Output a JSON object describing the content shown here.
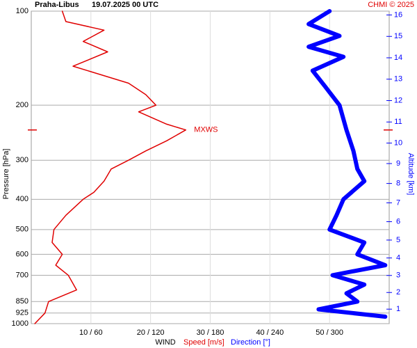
{
  "chart_data": {
    "type": "profile",
    "title": "Praha-Libus",
    "subtitle": "19.07.2025 00 UTC",
    "credit": "CHMI © 2025",
    "y_label": "Pressure [hPa]",
    "y2_label": "Altitude [km]",
    "x_label": "WIND",
    "ylog": true,
    "ylim": [
      1000,
      100
    ],
    "yticks": [
      100,
      200,
      300,
      400,
      500,
      600,
      700,
      850,
      925,
      1000
    ],
    "y2ticks": [
      1,
      2,
      3,
      4,
      5,
      6,
      7,
      8,
      9,
      10,
      11,
      12,
      13,
      14,
      15,
      16
    ],
    "xlim": [
      0,
      60
    ],
    "x2lim": [
      0,
      360
    ],
    "xticks": [
      {
        "value": 10,
        "label": "10 / 60"
      },
      {
        "value": 20,
        "label": "20 / 120"
      },
      {
        "value": 30,
        "label": "30 / 180"
      },
      {
        "value": 40,
        "label": "40 / 240"
      },
      {
        "value": 50,
        "label": "50 / 300"
      }
    ],
    "grid": true,
    "series": [
      {
        "name": "Speed [m/s]",
        "color": "#e00000",
        "axis": "x",
        "pressure": [
          1000,
          925,
          850,
          780,
          700,
          650,
          600,
          550,
          500,
          450,
          400,
          380,
          350,
          320,
          300,
          280,
          260,
          240,
          230,
          210,
          200,
          185,
          170,
          150,
          135,
          125,
          115,
          108,
          100
        ],
        "values": [
          0.6,
          2.3,
          2.9,
          7.6,
          6.2,
          4.1,
          5.2,
          3.5,
          3.8,
          5.8,
          8.7,
          10.5,
          12.2,
          13.4,
          16.3,
          19.2,
          22.7,
          25.9,
          22.7,
          18,
          20.9,
          19.2,
          16.3,
          7,
          12.8,
          8.7,
          12.2,
          5.8,
          5.2
        ]
      },
      {
        "name": "Direction [°]",
        "color": "#0000ff",
        "axis": "x2",
        "pressure": [
          950,
          900,
          850,
          800,
          750,
          700,
          650,
          600,
          550,
          500,
          450,
          400,
          350,
          320,
          280,
          240,
          200,
          175,
          155,
          140,
          130,
          120,
          110,
          100
        ],
        "values": [
          356,
          289,
          328,
          317,
          335,
          303,
          356,
          328,
          335,
          300,
          307,
          314,
          335,
          328,
          324,
          317,
          310,
          296,
          283,
          314,
          279,
          310,
          279,
          300
        ]
      }
    ],
    "annotation": {
      "label": "MXWS",
      "pressure": 240
    }
  }
}
